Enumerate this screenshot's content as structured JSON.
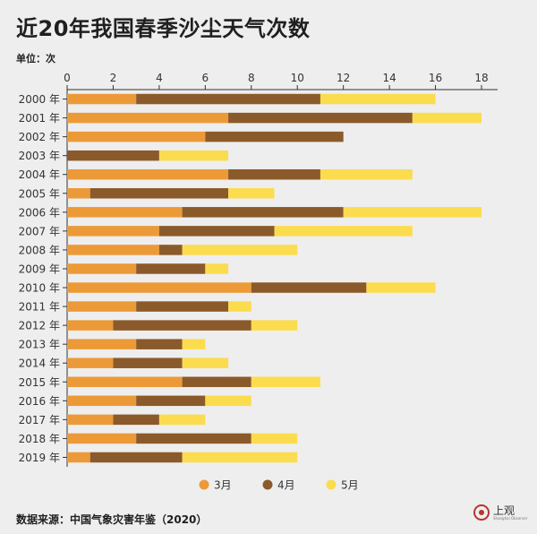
{
  "title": "近20年我国春季沙尘天气次数",
  "unit_label": "单位：次",
  "source": "数据来源：中国气象灾害年鉴（2020）",
  "logo": {
    "name": "上观",
    "sub": "Shanghai Observer"
  },
  "colors": {
    "mar": "#ec9a38",
    "apr": "#8b5a2b",
    "may": "#fbdc4e",
    "axis": "#333333"
  },
  "chart_data": {
    "type": "bar",
    "orientation": "horizontal",
    "stacked": true,
    "categories": [
      "2000 年",
      "2001 年",
      "2002 年",
      "2003 年",
      "2004 年",
      "2005 年",
      "2006 年",
      "2007 年",
      "2008 年",
      "2009 年",
      "2010 年",
      "2011 年",
      "2012 年",
      "2013 年",
      "2014 年",
      "2015 年",
      "2016 年",
      "2017 年",
      "2018 年",
      "2019 年"
    ],
    "series": [
      {
        "name": "3月",
        "values": [
          3,
          7,
          6,
          0,
          7,
          1,
          5,
          4,
          4,
          3,
          8,
          3,
          2,
          3,
          2,
          5,
          3,
          2,
          3,
          1
        ]
      },
      {
        "name": "4月",
        "values": [
          8,
          8,
          6,
          4,
          4,
          6,
          7,
          5,
          1,
          3,
          5,
          4,
          6,
          2,
          3,
          3,
          3,
          2,
          5,
          4
        ]
      },
      {
        "name": "5月",
        "values": [
          5,
          3,
          0,
          3,
          4,
          2,
          6,
          6,
          5,
          1,
          3,
          1,
          2,
          1,
          2,
          3,
          2,
          2,
          2,
          5
        ]
      }
    ],
    "xlim": [
      0,
      18
    ],
    "xticks": [
      0,
      2,
      4,
      6,
      8,
      10,
      12,
      14,
      16,
      18
    ],
    "legend_position": "bottom"
  }
}
